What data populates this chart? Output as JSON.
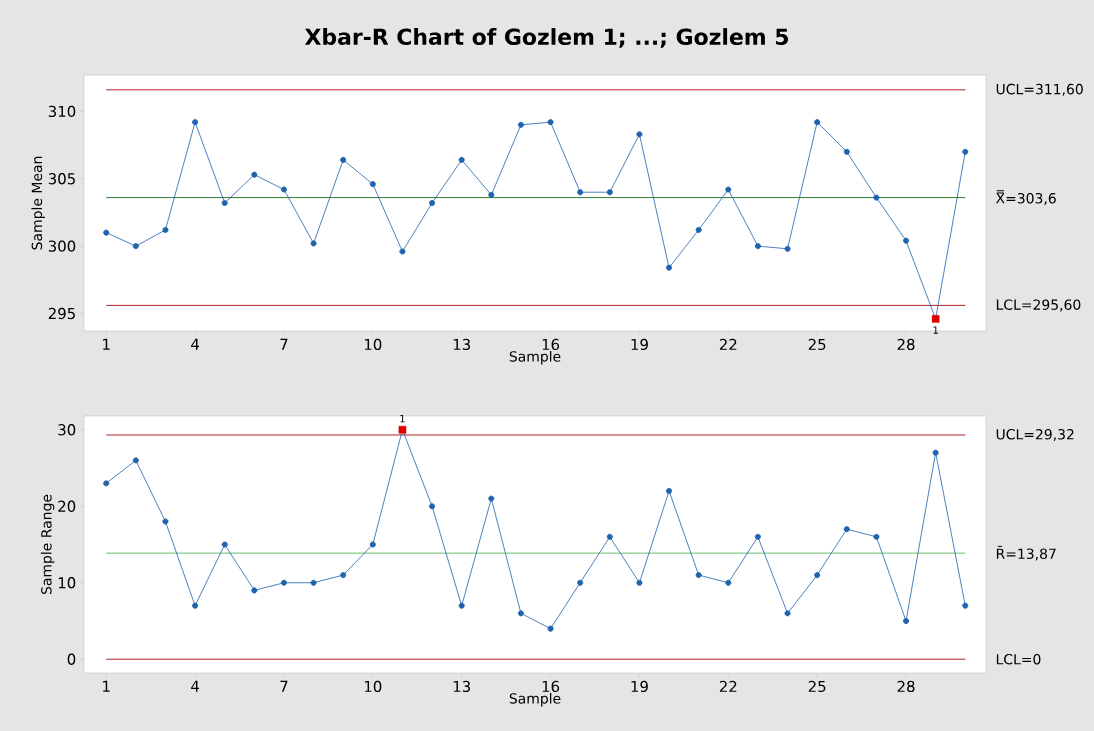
{
  "chart_data": [
    {
      "type": "line",
      "title": "Xbar-R Chart of Gozlem 1; ...; Gozlem 5",
      "xlabel": "Sample",
      "ylabel": "Sample Mean",
      "marker": "circle",
      "xlim": [
        0.25,
        30.7
      ],
      "xticks": [
        1,
        4,
        7,
        10,
        13,
        16,
        19,
        22,
        25,
        28
      ],
      "ylim": [
        293.7,
        312.7
      ],
      "yticks": [
        295,
        300,
        305,
        310
      ],
      "series": [
        {
          "color": "#1f62ad",
          "x": [
            1,
            2,
            3,
            4,
            5,
            6,
            7,
            8,
            9,
            10,
            11,
            12,
            13,
            14,
            15,
            16,
            17,
            18,
            19,
            20,
            21,
            22,
            23,
            24,
            25,
            26,
            27,
            28,
            29,
            30
          ],
          "values": [
            301.0,
            300.0,
            301.2,
            309.2,
            303.2,
            305.3,
            304.2,
            300.2,
            306.4,
            304.6,
            299.6,
            303.2,
            306.4,
            303.8,
            309.0,
            309.2,
            304.0,
            304.0,
            308.3,
            298.4,
            301.2,
            304.2,
            300.0,
            299.8,
            309.2,
            307.0,
            303.6,
            300.4,
            294.6,
            307.0
          ]
        },
        {
          "type": "scatter",
          "marker": "square",
          "color": "#e00000",
          "x": [
            29
          ],
          "values": [
            294.6
          ]
        }
      ],
      "ref_lines": [
        {
          "axis": "y",
          "value": 311.6,
          "label": "UCL=311,60",
          "color": "#b22222"
        },
        {
          "axis": "y",
          "value": 303.6,
          "label": "X̿=303,6",
          "color": "#2e7d32"
        },
        {
          "axis": "y",
          "value": 295.6,
          "label": "LCL=295,60",
          "color": "#b22222"
        }
      ],
      "annotations": [
        {
          "text": "1",
          "x": 29,
          "y": 294.6
        }
      ]
    },
    {
      "type": "line",
      "xlabel": "Sample",
      "ylabel": "Sample Range",
      "marker": "circle",
      "xlim": [
        0.25,
        30.7
      ],
      "xticks": [
        1,
        4,
        7,
        10,
        13,
        16,
        19,
        22,
        25,
        28
      ],
      "ylim": [
        -1.8,
        31.8
      ],
      "yticks": [
        0,
        10,
        20,
        30
      ],
      "series": [
        {
          "color": "#1f62ad",
          "x": [
            1,
            2,
            3,
            4,
            5,
            6,
            7,
            8,
            9,
            10,
            11,
            12,
            13,
            14,
            15,
            16,
            17,
            18,
            19,
            20,
            21,
            22,
            23,
            24,
            25,
            26,
            27,
            28,
            29,
            30
          ],
          "values": [
            23,
            26,
            18,
            7,
            15,
            9,
            10,
            10,
            11,
            15,
            30,
            20,
            7,
            21,
            6,
            4,
            10,
            16,
            10,
            22,
            11,
            10,
            16,
            6,
            11,
            17,
            16,
            5,
            27,
            7
          ]
        },
        {
          "type": "scatter",
          "marker": "square",
          "color": "#e00000",
          "x": [
            11
          ],
          "values": [
            30
          ]
        }
      ],
      "ref_lines": [
        {
          "axis": "y",
          "value": 29.32,
          "label": "UCL=29,32",
          "color": "#b22222"
        },
        {
          "axis": "y",
          "value": 13.87,
          "label": "R̄=13,87",
          "color": "#66bb6a"
        },
        {
          "axis": "y",
          "value": 0,
          "label": "LCL=0",
          "color": "#b22222"
        }
      ],
      "annotations": [
        {
          "text": "1",
          "x": 11,
          "y": 30
        }
      ]
    }
  ]
}
